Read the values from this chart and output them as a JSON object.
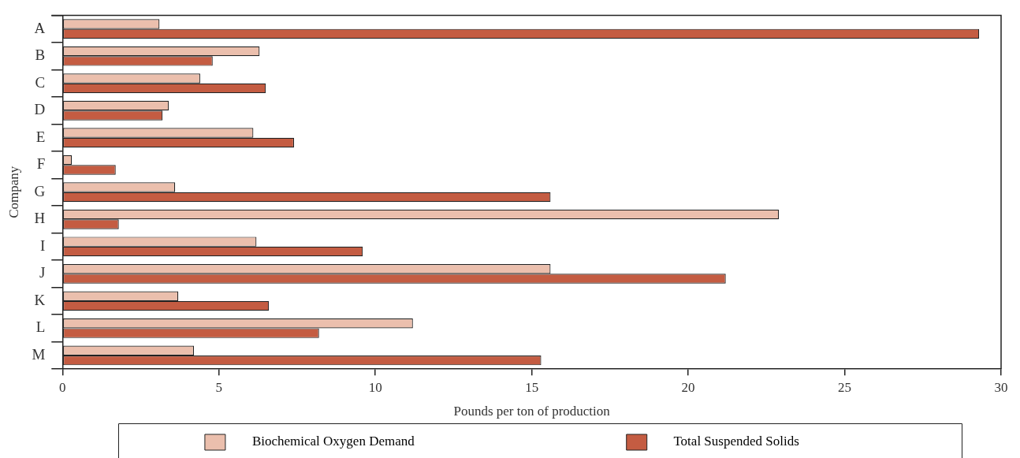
{
  "chart_data": {
    "type": "bar",
    "orientation": "horizontal",
    "xlabel": "Pounds per ton of production",
    "ylabel": "Company",
    "categories": [
      "A",
      "B",
      "C",
      "D",
      "E",
      "F",
      "G",
      "H",
      "I",
      "J",
      "K",
      "L",
      "M"
    ],
    "series": [
      {
        "name": "Biochemical Oxygen Demand",
        "color": "#ebbfad",
        "values": [
          3.1,
          6.3,
          4.4,
          3.4,
          6.1,
          0.3,
          3.6,
          22.9,
          6.2,
          15.6,
          3.7,
          11.2,
          4.2
        ]
      },
      {
        "name": "Total Suspended Solids",
        "color": "#c45c42",
        "values": [
          29.3,
          4.8,
          6.5,
          3.2,
          7.4,
          1.7,
          15.6,
          1.8,
          9.6,
          21.2,
          6.6,
          8.2,
          15.3
        ]
      }
    ],
    "xlim": [
      0,
      30
    ],
    "xticks": [
      0,
      5,
      10,
      15,
      20,
      25,
      30
    ],
    "legend": "bottom"
  }
}
